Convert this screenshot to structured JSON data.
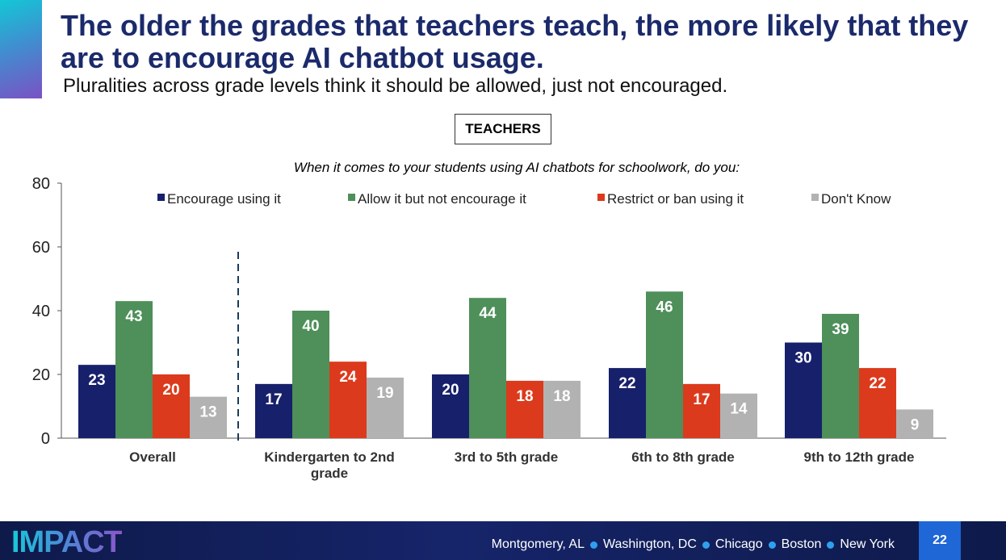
{
  "slide": {
    "title": "The older the grades that teachers teach, the more likely that they are to encourage AI chatbot usage.",
    "subtitle": "Pluralities across grade levels think it should be allowed, just not encouraged.",
    "audience": "TEACHERS",
    "question": "When it comes to your students using AI chatbots for schoolwork, do you:",
    "page_number": "22"
  },
  "footer": {
    "brand": "IMPACT",
    "locations": [
      "Montgomery, AL",
      "Washington, DC",
      "Chicago",
      "Boston",
      "New York"
    ]
  },
  "colors": {
    "title": "#1b2a6b",
    "encourage": "#17206b",
    "allow": "#4e8f5a",
    "restrict": "#dc3a1c",
    "dont_know": "#b2b2b2"
  },
  "chart_data": {
    "type": "bar",
    "title": "When it comes to your students using AI chatbots for schoolwork, do you:",
    "xlabel": "",
    "ylabel": "",
    "ylim": [
      0,
      80
    ],
    "yticks": [
      0,
      20,
      40,
      60,
      80
    ],
    "categories": [
      "Overall",
      "Kindergarten to 2nd grade",
      "3rd to 5th grade",
      "6th to 8th grade",
      "9th to 12th grade"
    ],
    "category_label_lines": [
      [
        "Overall"
      ],
      [
        "Kindergarten to 2nd",
        "grade"
      ],
      [
        "3rd to 5th grade"
      ],
      [
        "6th to 8th grade"
      ],
      [
        "9th to 12th grade"
      ]
    ],
    "series": [
      {
        "name": "Encourage using it",
        "color": "#17206b",
        "values": [
          23,
          17,
          20,
          22,
          30
        ]
      },
      {
        "name": "Allow it but not encourage it",
        "color": "#4e8f5a",
        "values": [
          43,
          40,
          44,
          46,
          39
        ]
      },
      {
        "name": "Restrict or ban using it",
        "color": "#dc3a1c",
        "values": [
          20,
          24,
          18,
          17,
          22
        ]
      },
      {
        "name": "Don't Know",
        "color": "#b2b2b2",
        "values": [
          13,
          19,
          18,
          14,
          9
        ]
      }
    ],
    "legend_position": "top",
    "separator_after_category": 0,
    "grid": false
  }
}
